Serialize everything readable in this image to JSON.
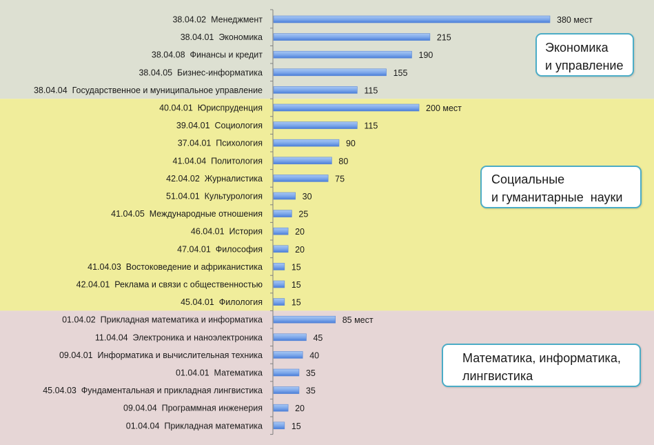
{
  "chart_data": {
    "type": "bar",
    "orientation": "horizontal",
    "grid": false,
    "xlim": [
      0,
      380
    ],
    "colors": {
      "bar_light": "#a9c8f3",
      "bar_dark": "#4a7ed8",
      "axis": "#7f7f7f",
      "box_border": "#4bacc6"
    },
    "categories": [
      "38.04.02  Менеджмент",
      "38.04.01  Экономика",
      "38.04.08  Финансы и кредит",
      "38.04.05  Бизнес-информатика",
      "38.04.04  Государственное и муниципальное управление",
      "40.04.01  Юриспруденция",
      "39.04.01  Социология",
      "37.04.01  Психология",
      "41.04.04  Политология",
      "42.04.02  Журналистика",
      "51.04.01  Культурология",
      "41.04.05  Международные отношения",
      "46.04.01  История",
      "47.04.01  Философия",
      "41.04.03  Востоковедение и африканистика",
      "42.04.01  Реклама и связи с общественностью",
      "45.04.01  Филология",
      "01.04.02  Прикладная математика и информатика",
      "11.04.04  Электроника и наноэлектроника",
      "09.04.01  Информатика и вычислительная техника",
      "01.04.01  Математика",
      "45.04.03  Фундаментальная и прикладная лингвистика",
      "09.04.04  Программная инженерия",
      "01.04.04  Прикладная математика"
    ],
    "values": [
      380,
      215,
      190,
      155,
      115,
      200,
      115,
      90,
      80,
      75,
      30,
      25,
      20,
      20,
      15,
      15,
      15,
      85,
      45,
      40,
      35,
      35,
      20,
      15
    ],
    "data_labels": [
      "380 мест",
      "215",
      "190",
      "155",
      "115",
      "200 мест",
      "115",
      "90",
      "80",
      "75",
      "30",
      "25",
      "20",
      "20",
      "15",
      "15",
      "15",
      "85 мест",
      "45",
      "40",
      "35",
      "35",
      "20",
      "15"
    ],
    "groups": [
      {
        "name": "Экономика\nи управление",
        "first": 0,
        "last": 4,
        "color": "#dde0d2"
      },
      {
        "name": "Социальные\nи гуманитарные  науки",
        "first": 5,
        "last": 16,
        "color": "#f0ed9b"
      },
      {
        "name": "Математика, информатика,\nлингвистика",
        "first": 17,
        "last": 23,
        "color": "#e6d6d6"
      }
    ]
  }
}
